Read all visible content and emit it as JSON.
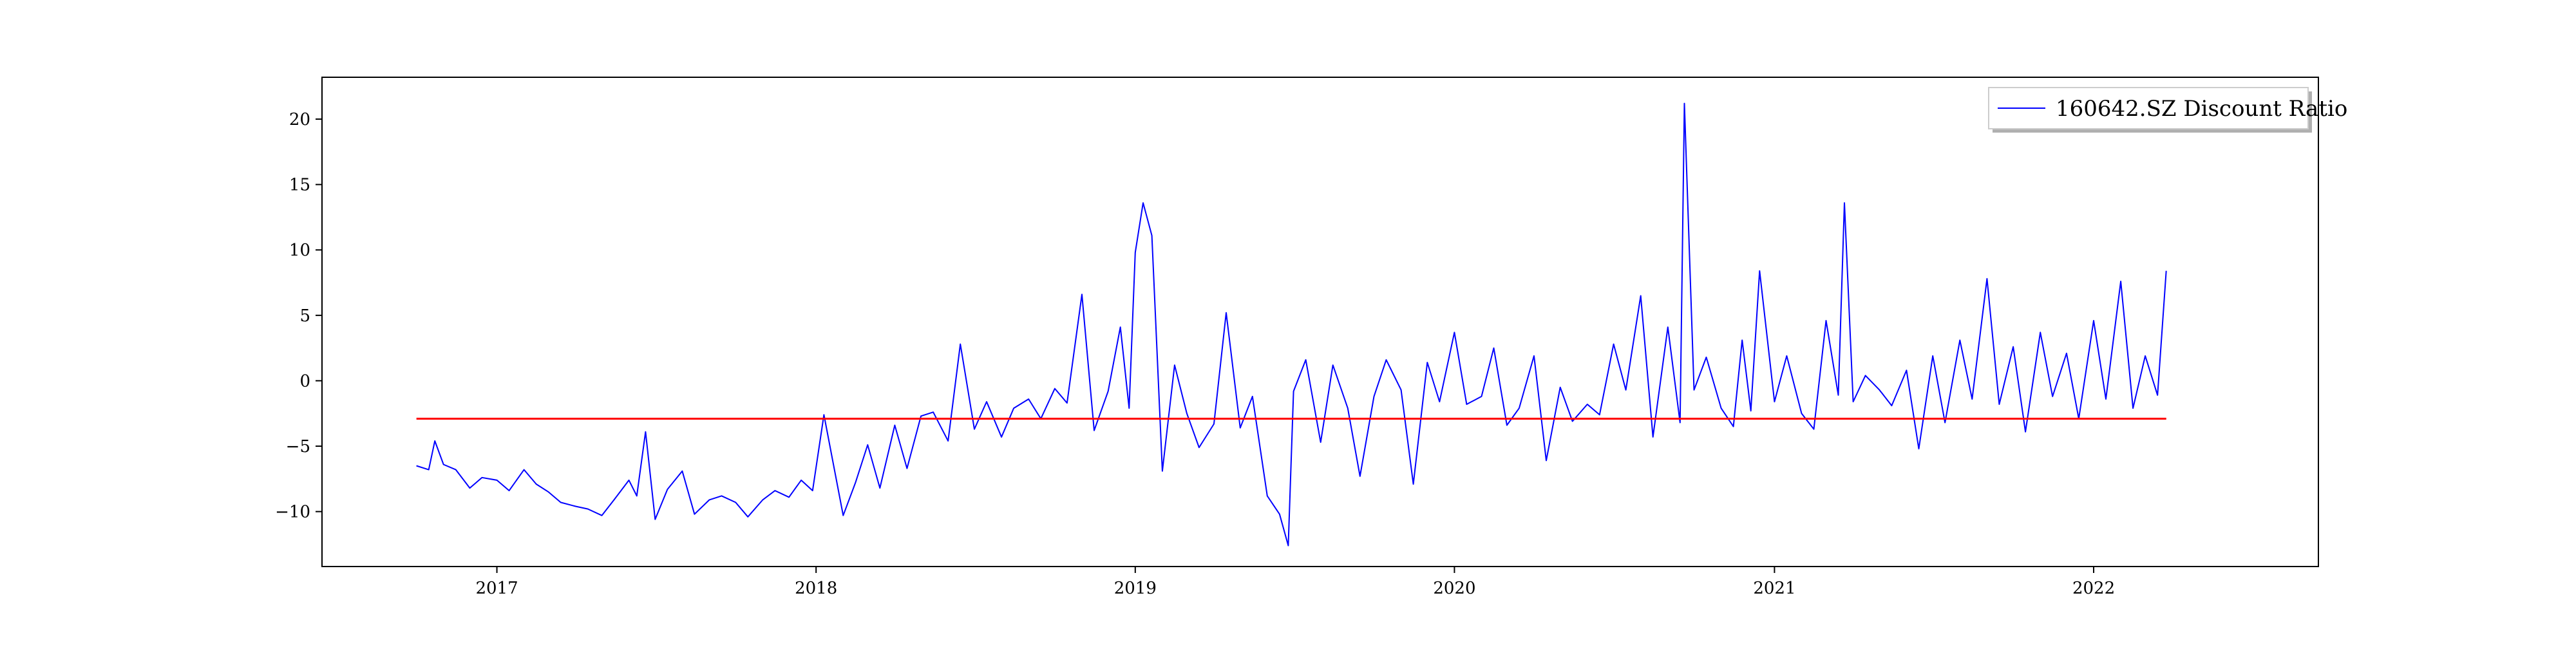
{
  "chart_data": {
    "type": "line",
    "title": "",
    "xlabel": "",
    "ylabel": "",
    "xlim": [
      "2016-06-15",
      "2022-09-15"
    ],
    "ylim": [
      -14.2,
      23.2
    ],
    "x_ticks": [
      "2017",
      "2018",
      "2019",
      "2020",
      "2021",
      "2022"
    ],
    "y_ticks": [
      -10,
      -5,
      0,
      5,
      10,
      15,
      20
    ],
    "grid": false,
    "legend": {
      "position": "top-right",
      "entries": [
        "160642.SZ Discount Ratio"
      ]
    },
    "colors": {
      "series": "#0000ff",
      "reference": "#ff0000",
      "axes": "#000000"
    },
    "series": [
      {
        "name": "160642.SZ Discount Ratio",
        "x": [
          "2016-10-01",
          "2016-10-15",
          "2016-10-22",
          "2016-11-01",
          "2016-11-15",
          "2016-12-01",
          "2016-12-15",
          "2017-01-01",
          "2017-01-15",
          "2017-02-01",
          "2017-02-15",
          "2017-03-01",
          "2017-03-15",
          "2017-04-01",
          "2017-04-15",
          "2017-05-01",
          "2017-05-15",
          "2017-06-01",
          "2017-06-10",
          "2017-06-20",
          "2017-07-01",
          "2017-07-15",
          "2017-08-01",
          "2017-08-15",
          "2017-09-01",
          "2017-09-15",
          "2017-10-01",
          "2017-10-15",
          "2017-11-01",
          "2017-11-15",
          "2017-12-01",
          "2017-12-15",
          "2017-12-28",
          "2018-01-10",
          "2018-02-01",
          "2018-02-15",
          "2018-03-01",
          "2018-03-15",
          "2018-04-01",
          "2018-04-15",
          "2018-05-01",
          "2018-05-15",
          "2018-06-01",
          "2018-06-15",
          "2018-07-01",
          "2018-07-15",
          "2018-08-01",
          "2018-08-15",
          "2018-09-01",
          "2018-09-15",
          "2018-10-01",
          "2018-10-15",
          "2018-11-01",
          "2018-11-15",
          "2018-12-01",
          "2018-12-15",
          "2018-12-25",
          "2019-01-01",
          "2019-01-10",
          "2019-01-20",
          "2019-02-01",
          "2019-02-15",
          "2019-03-01",
          "2019-03-15",
          "2019-04-01",
          "2019-04-15",
          "2019-05-01",
          "2019-05-15",
          "2019-06-01",
          "2019-06-15",
          "2019-06-25",
          "2019-07-01",
          "2019-07-15",
          "2019-08-01",
          "2019-08-15",
          "2019-09-01",
          "2019-09-15",
          "2019-10-01",
          "2019-10-15",
          "2019-11-01",
          "2019-11-15",
          "2019-12-01",
          "2019-12-15",
          "2020-01-01",
          "2020-01-15",
          "2020-02-01",
          "2020-02-15",
          "2020-03-01",
          "2020-03-15",
          "2020-04-01",
          "2020-04-15",
          "2020-05-01",
          "2020-05-15",
          "2020-06-01",
          "2020-06-15",
          "2020-07-01",
          "2020-07-15",
          "2020-08-01",
          "2020-08-15",
          "2020-09-01",
          "2020-09-15",
          "2020-09-20",
          "2020-10-01",
          "2020-10-15",
          "2020-11-01",
          "2020-11-15",
          "2020-11-25",
          "2020-12-05",
          "2020-12-15",
          "2021-01-01",
          "2021-01-15",
          "2021-02-01",
          "2021-02-15",
          "2021-03-01",
          "2021-03-15",
          "2021-03-22",
          "2021-04-01",
          "2021-04-15",
          "2021-05-01",
          "2021-05-15",
          "2021-06-01",
          "2021-06-15",
          "2021-07-01",
          "2021-07-15",
          "2021-08-01",
          "2021-08-15",
          "2021-09-01",
          "2021-09-15",
          "2021-10-01",
          "2021-10-15",
          "2021-11-01",
          "2021-11-15",
          "2021-12-01",
          "2021-12-15",
          "2022-01-01",
          "2022-01-15",
          "2022-02-01",
          "2022-02-15",
          "2022-03-01",
          "2022-03-15",
          "2022-03-25"
        ],
        "y": [
          -6.5,
          -6.8,
          -4.6,
          -6.4,
          -6.8,
          -8.2,
          -7.4,
          -7.6,
          -8.4,
          -6.8,
          -7.9,
          -8.5,
          -9.3,
          -9.6,
          -9.8,
          -10.3,
          -9.1,
          -7.6,
          -8.8,
          -3.9,
          -10.6,
          -8.3,
          -6.9,
          -10.2,
          -9.1,
          -8.8,
          -9.3,
          -10.4,
          -9.1,
          -8.4,
          -8.9,
          -7.6,
          -8.4,
          -2.6,
          -10.3,
          -7.8,
          -4.9,
          -8.2,
          -3.4,
          -6.7,
          -2.7,
          -2.4,
          -4.6,
          2.8,
          -3.7,
          -1.6,
          -4.3,
          -2.1,
          -1.4,
          -2.9,
          -0.6,
          -1.7,
          6.6,
          -3.8,
          -0.8,
          4.1,
          -2.1,
          9.8,
          13.6,
          11.1,
          -6.9,
          1.2,
          -2.5,
          -5.1,
          -3.3,
          5.2,
          -3.6,
          -1.2,
          -8.8,
          -10.2,
          -12.6,
          -0.8,
          1.6,
          -4.7,
          1.2,
          -2.1,
          -7.3,
          -1.2,
          1.6,
          -0.7,
          -7.9,
          1.4,
          -1.6,
          3.7,
          -1.8,
          -1.2,
          2.5,
          -3.4,
          -2.1,
          1.9,
          -6.1,
          -0.5,
          -3.1,
          -1.8,
          -2.6,
          2.8,
          -0.7,
          6.5,
          -4.3,
          4.1,
          -3.2,
          21.2,
          -0.7,
          1.8,
          -2.1,
          -3.5,
          3.1,
          -2.3,
          8.4,
          -1.6,
          1.9,
          -2.5,
          -3.7,
          4.6,
          -1.1,
          13.6,
          -1.6,
          0.4,
          -0.7,
          -1.9,
          0.8,
          -5.2,
          1.9,
          -3.2,
          3.1,
          -1.4,
          7.8,
          -1.8,
          2.6,
          -3.9,
          3.7,
          -1.2,
          2.1,
          -2.9,
          4.6,
          -1.4,
          7.6,
          -2.1,
          1.9,
          -1.1,
          8.4
        ]
      },
      {
        "name": "",
        "x": [
          "2016-10-01",
          "2022-03-25"
        ],
        "y": [
          -2.9,
          -2.9
        ]
      }
    ]
  }
}
